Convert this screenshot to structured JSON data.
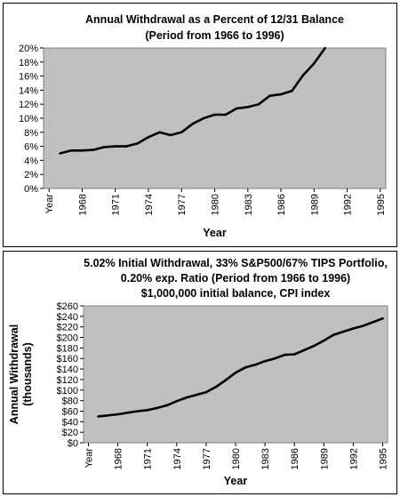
{
  "chart_data": [
    {
      "type": "line",
      "title": "Annual Withdrawal as a Percent of 12/31 Balance",
      "subtitle": "(Period from 1966 to 1996)",
      "xlabel": "Year",
      "ylabel": "",
      "x_tick_labels": [
        "Year",
        "1968",
        "1971",
        "1974",
        "1977",
        "1980",
        "1983",
        "1986",
        "1989",
        "1992",
        "1995"
      ],
      "y_tick_labels": [
        "0%",
        "2%",
        "4%",
        "6%",
        "8%",
        "10%",
        "12%",
        "14%",
        "16%",
        "18%",
        "20%"
      ],
      "ylim": [
        0,
        20
      ],
      "grid": false,
      "plot_background": "#c0c0c0",
      "line_color": "#000000",
      "x": [
        1966,
        1967,
        1968,
        1969,
        1970,
        1971,
        1972,
        1973,
        1974,
        1975,
        1976,
        1977,
        1978,
        1979,
        1980,
        1981,
        1982,
        1983,
        1984,
        1985,
        1986,
        1987,
        1988,
        1989,
        1990
      ],
      "values": [
        5.0,
        5.4,
        5.4,
        5.5,
        5.9,
        6.0,
        6.0,
        6.4,
        7.3,
        8.0,
        7.6,
        8.0,
        9.2,
        10.0,
        10.5,
        10.5,
        11.4,
        11.6,
        12.0,
        13.2,
        13.4,
        13.9,
        16.1,
        17.8,
        20.0
      ]
    },
    {
      "type": "line",
      "title": "5.02% Initial Withdrawal, 33% S&P500/67% TIPS Portfolio,",
      "subtitle": "0.20% exp. Ratio  (Period from 1966 to 1996)",
      "subtitle2": "$1,000,000 initial balance, CPI index",
      "xlabel": "Year",
      "ylabel": "Annual Withdrawal (thousands)",
      "ylabel_lines": [
        "Annual Withdrawal",
        "(thousands)"
      ],
      "x_tick_labels": [
        "Year",
        "1968",
        "1971",
        "1974",
        "1977",
        "1980",
        "1983",
        "1986",
        "1989",
        "1992",
        "1995"
      ],
      "y_tick_labels": [
        "$0",
        "$20",
        "$40",
        "$60",
        "$80",
        "$100",
        "$120",
        "$140",
        "$160",
        "$180",
        "$200",
        "$220",
        "$240",
        "$260"
      ],
      "ylim": [
        0,
        260
      ],
      "grid": false,
      "plot_background": "#c0c0c0",
      "line_color": "#000000",
      "x": [
        1966,
        1967,
        1968,
        1969,
        1970,
        1971,
        1972,
        1973,
        1974,
        1975,
        1976,
        1977,
        1978,
        1979,
        1980,
        1981,
        1982,
        1983,
        1984,
        1985,
        1986,
        1987,
        1988,
        1989,
        1990,
        1991,
        1992,
        1993,
        1994,
        1995
      ],
      "values": [
        50,
        52,
        54,
        57,
        60,
        62,
        66,
        71,
        79,
        86,
        91,
        96,
        106,
        119,
        133,
        143,
        148,
        155,
        160,
        167,
        168,
        176,
        184,
        194,
        205,
        211,
        217,
        222,
        229,
        236
      ]
    }
  ]
}
